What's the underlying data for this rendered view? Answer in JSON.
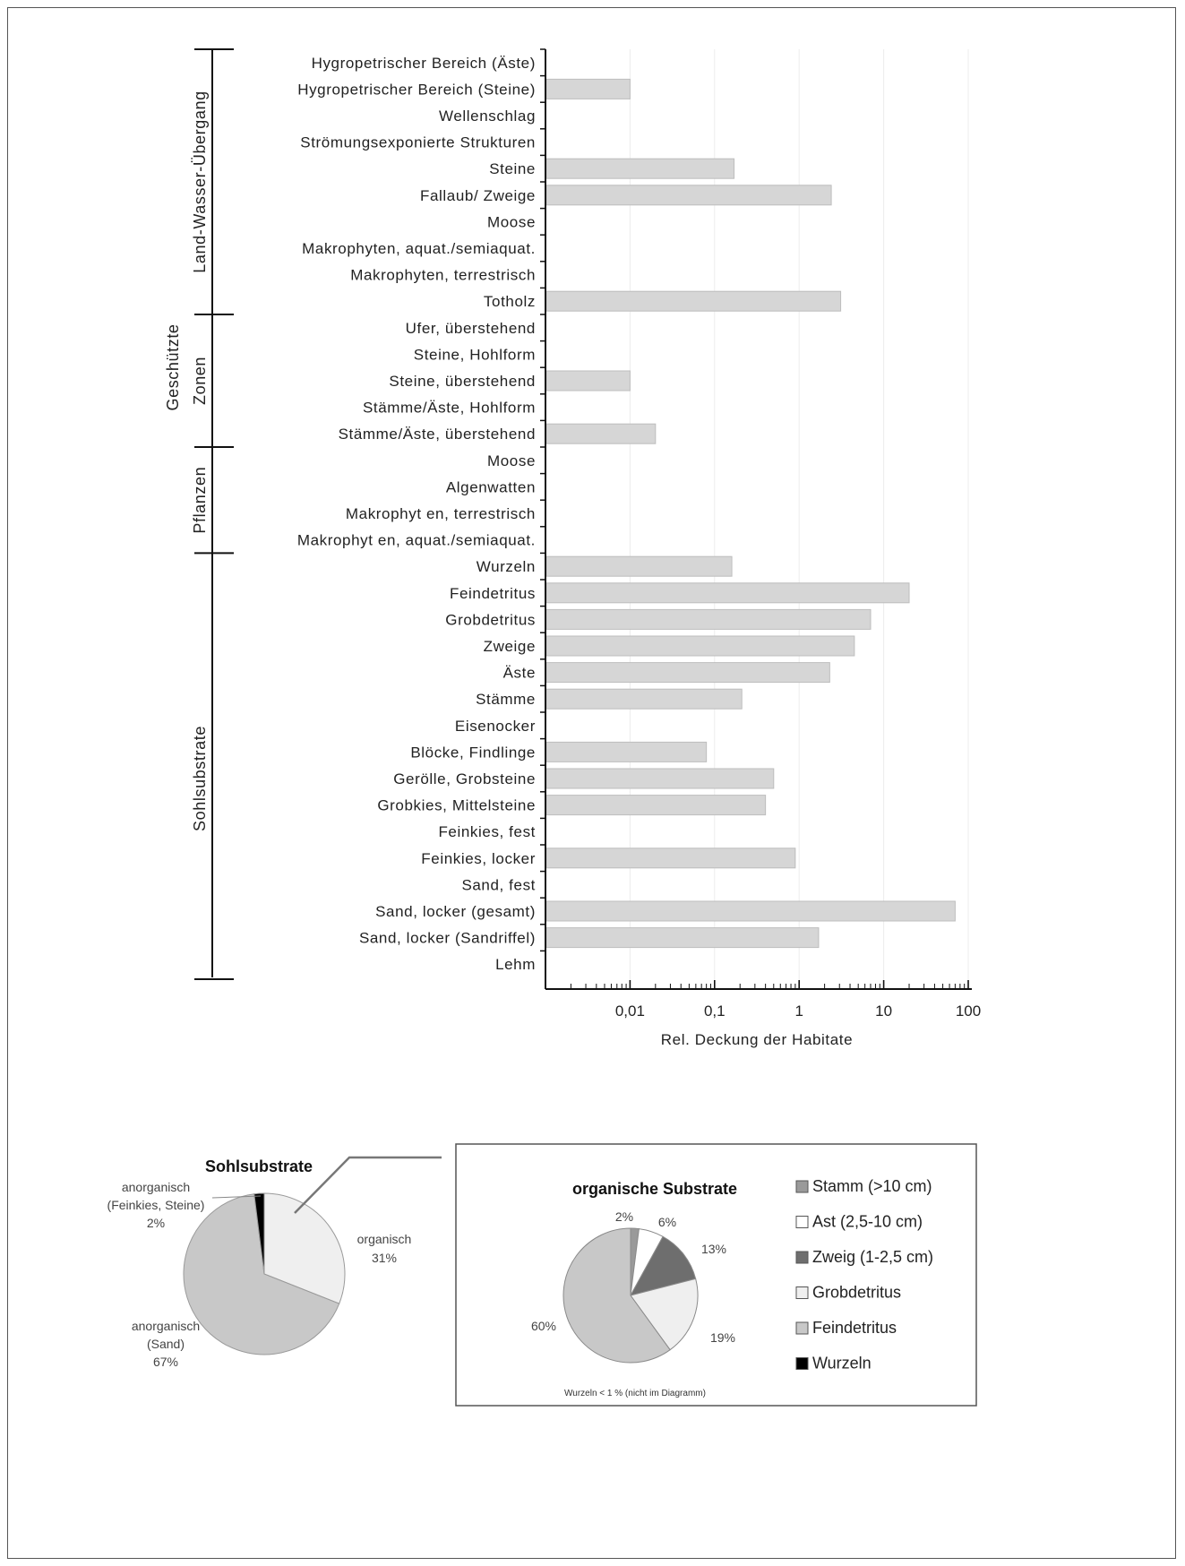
{
  "chart_data": [
    {
      "type": "bar",
      "orientation": "horizontal",
      "xscale": "log",
      "xlabel": "Rel. Deckung der Habitate",
      "xlim": [
        0.001,
        100
      ],
      "xticks": [
        "0,01",
        "0,1",
        "1",
        "10",
        "100"
      ],
      "group_outer_label": "Geschützte",
      "groups": [
        {
          "name": "Land-Wasser-Übergang",
          "start": 0,
          "end": 9
        },
        {
          "name": "Zonen",
          "start": 10,
          "end": 14
        },
        {
          "name": "Pflanzen",
          "start": 15,
          "end": 18
        },
        {
          "name": "Sohlsubstrate",
          "start": 19,
          "end": 35
        }
      ],
      "categories": [
        "Hygropetrischer Bereich (Äste)",
        "Hygropetrischer Bereich (Steine)",
        "Wellenschlag",
        "Strömungsexponierte Strukturen",
        "Steine",
        "Fallaub/ Zweige",
        "Moose",
        "Makrophyten, aquat./semiaquat.",
        "Makrophyten, terrestrisch",
        "Totholz",
        "Ufer, überstehend",
        "Steine, Hohlform",
        "Steine, überstehend",
        "Stämme/Äste, Hohlform",
        "Stämme/Äste, überstehend",
        "Moose",
        "Algenwatten",
        "Makrophyt en, terrestrisch",
        "Makrophyt en, aquat./semiaquat.",
        "Wurzeln",
        "Feindetritus",
        "Grobdetritus",
        "Zweige",
        "Äste",
        "Stämme",
        "Eisenocker",
        "Blöcke, Findlinge",
        "Gerölle, Grobsteine",
        "Grobkies, Mittelsteine",
        "Feinkies, fest",
        "Feinkies, locker",
        "Sand, fest",
        "Sand, locker (gesamt)",
        "Sand, locker (Sandriffel)",
        "Lehm"
      ],
      "values": [
        null,
        0.01,
        null,
        null,
        0.17,
        2.4,
        null,
        null,
        null,
        3.1,
        null,
        null,
        0.01,
        null,
        0.02,
        null,
        null,
        null,
        null,
        0.16,
        20,
        7,
        4.5,
        2.3,
        0.21,
        null,
        0.08,
        0.5,
        0.4,
        null,
        0.9,
        null,
        70,
        1.7,
        null
      ],
      "bar_color": "#d6d6d6"
    },
    {
      "type": "pie",
      "title": "Sohlsubstrate",
      "slices": [
        {
          "label": "organisch",
          "value": 31,
          "value_label": "31%",
          "color": "#efefef"
        },
        {
          "label": "anorganisch (Sand)",
          "lines": [
            "anorganisch",
            "(Sand)"
          ],
          "value": 67,
          "value_label": "67%",
          "color": "#c8c8c8"
        },
        {
          "label": "anorganisch (Feinkies, Steine)",
          "lines": [
            "anorganisch",
            "(Feinkies, Steine)"
          ],
          "value": 2,
          "value_label": "2%",
          "color": "#000000"
        }
      ]
    },
    {
      "type": "pie",
      "title": "organische Substrate",
      "note": "Wurzeln < 1 % (nicht im Diagramm)",
      "slices": [
        {
          "label": "Stamm (>10 cm)",
          "value": 2,
          "value_label": "2%",
          "color": "#9a9a9a"
        },
        {
          "label": "Ast (2,5-10 cm)",
          "value": 6,
          "value_label": "6%",
          "color": "#ffffff"
        },
        {
          "label": "Zweig (1-2,5 cm)",
          "value": 13,
          "value_label": "13%",
          "color": "#6e6e6e"
        },
        {
          "label": "Grobdetritus",
          "value": 19,
          "value_label": "19%",
          "color": "#efefef"
        },
        {
          "label": "Feindetritus",
          "value": 60,
          "value_label": "60%",
          "color": "#c8c8c8"
        }
      ],
      "legend": [
        {
          "label": "Stamm (>10 cm)",
          "color": "#9a9a9a"
        },
        {
          "label": "Ast (2,5-10 cm)",
          "color": "#ffffff"
        },
        {
          "label": "Zweig (1-2,5 cm)",
          "color": "#6e6e6e"
        },
        {
          "label": "Grobdetritus",
          "color": "#efefef"
        },
        {
          "label": "Feindetritus",
          "color": "#c8c8c8"
        },
        {
          "label": "Wurzeln",
          "color": "#000000"
        }
      ]
    }
  ]
}
